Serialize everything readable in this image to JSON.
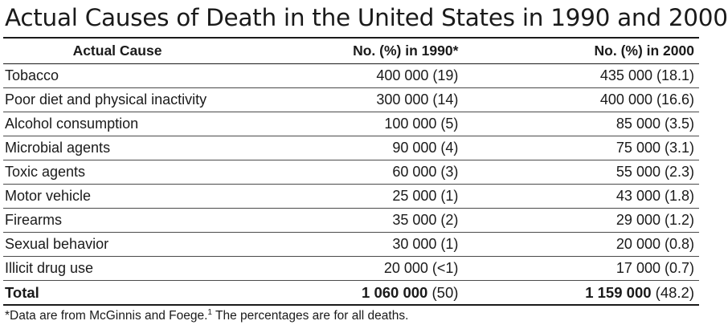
{
  "title": "Actual Causes of Death in the United States in 1990 and 2000",
  "table": {
    "headers": {
      "cause": "Actual Cause",
      "y1990": "No. (%) in 1990*",
      "y2000": "No. (%) in 2000"
    },
    "rows": [
      {
        "cause": "Tobacco",
        "y1990": "400 000 (19)",
        "y2000": "435 000 (18.1)"
      },
      {
        "cause": "Poor diet and physical inactivity",
        "y1990": "300 000 (14)",
        "y2000": "400 000 (16.6)"
      },
      {
        "cause": "Alcohol consumption",
        "y1990": "100 000 (5)",
        "y2000": "85 000 (3.5)"
      },
      {
        "cause": "Microbial agents",
        "y1990": "90 000 (4)",
        "y2000": "75 000 (3.1)"
      },
      {
        "cause": "Toxic agents",
        "y1990": "60 000 (3)",
        "y2000": "55 000 (2.3)"
      },
      {
        "cause": "Motor vehicle",
        "y1990": "25 000 (1)",
        "y2000": "43 000 (1.8)"
      },
      {
        "cause": "Firearms",
        "y1990": "35 000 (2)",
        "y2000": "29 000 (1.2)"
      },
      {
        "cause": "Sexual behavior",
        "y1990": "30 000 (1)",
        "y2000": "20 000 (0.8)"
      },
      {
        "cause": "Illicit drug use",
        "y1990": "20 000 (<1)",
        "y2000": "17 000 (0.7)"
      }
    ],
    "total": {
      "label": "Total",
      "y1990_number": "1 060 000",
      "y1990_pct": " (50)",
      "y2000_number": "1 159 000",
      "y2000_pct": " (48.2)"
    }
  },
  "footnote": {
    "text": "*Data are from McGinnis and Foege.",
    "ref": "1",
    "text_after": " The percentages are for all deaths."
  }
}
